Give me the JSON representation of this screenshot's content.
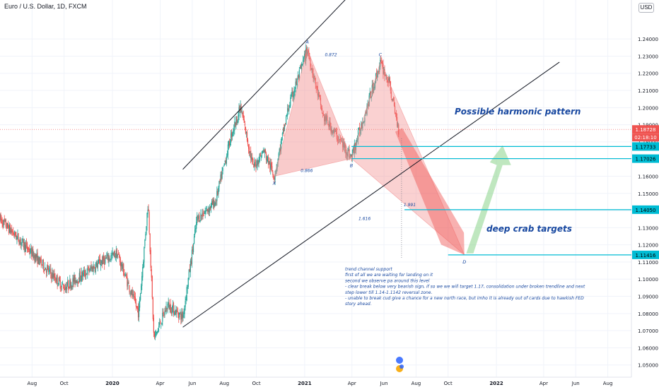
{
  "header": {
    "symbol_title": "Euro / U.S. Dollar, 1D, FXCM",
    "currency": "USD"
  },
  "colors": {
    "up_candle": "#26a69a",
    "down_candle": "#ef5350",
    "pattern_fill": "#f28b8b",
    "target_line": "#00bcd4",
    "projection_up": "#8bd48b",
    "annotation_text": "#1848a0",
    "current_price_bg": "#ef5350",
    "axis_text": "#131722"
  },
  "chart_data": {
    "type": "candlestick",
    "price_axis": {
      "ticks": [
        "1.24000",
        "1.23000",
        "1.22000",
        "1.21000",
        "1.20000",
        "1.19000",
        "1.18000",
        "1.17000",
        "1.16000",
        "1.15000",
        "1.14000",
        "1.13000",
        "1.12000",
        "1.11000",
        "1.10000",
        "1.09000",
        "1.08000",
        "1.07000",
        "1.06000",
        "1.05000"
      ],
      "range": [
        1.047,
        1.252
      ]
    },
    "time_axis": {
      "ticks": [
        "Aug",
        "Oct",
        "2020",
        "Apr",
        "Jun",
        "Aug",
        "Oct",
        "2021",
        "Apr",
        "Jun",
        "Aug",
        "Oct",
        "2022",
        "Apr",
        "Jun",
        "Aug"
      ]
    },
    "ohlc_anchors": [
      [
        "2019-06-01",
        1.135
      ],
      [
        "2019-08-01",
        1.115
      ],
      [
        "2019-10-01",
        1.095
      ],
      [
        "2019-12-10",
        1.11
      ],
      [
        "2020-01-10",
        1.115
      ],
      [
        "2020-02-20",
        1.08
      ],
      [
        "2020-03-09",
        1.145
      ],
      [
        "2020-03-20",
        1.065
      ],
      [
        "2020-04-15",
        1.085
      ],
      [
        "2020-05-14",
        1.078
      ],
      [
        "2020-06-10",
        1.135
      ],
      [
        "2020-07-15",
        1.145
      ],
      [
        "2020-08-15",
        1.185
      ],
      [
        "2020-09-01",
        1.2
      ],
      [
        "2020-09-25",
        1.165
      ],
      [
        "2020-10-15",
        1.175
      ],
      [
        "2020-11-04",
        1.16
      ],
      [
        "2020-12-01",
        1.2
      ],
      [
        "2021-01-06",
        1.234
      ],
      [
        "2021-02-05",
        1.195
      ],
      [
        "2021-03-31",
        1.171
      ],
      [
        "2021-05-25",
        1.226
      ],
      [
        "2021-06-10",
        1.215
      ],
      [
        "2021-06-29",
        1.187
      ]
    ],
    "current_price": {
      "value": 1.18728,
      "label": "1.18728",
      "countdown": "02:18:10"
    },
    "target_levels": [
      {
        "value": 1.17733,
        "label": "1.17733"
      },
      {
        "value": 1.17026,
        "label": "1.17026"
      },
      {
        "value": 1.1405,
        "label": "1.14050"
      },
      {
        "value": 1.11416,
        "label": "1.11416"
      }
    ],
    "harmonic_pattern": {
      "points": [
        {
          "name": "X",
          "date": "2020-11-04",
          "value": 1.16
        },
        {
          "name": "A",
          "date": "2021-01-06",
          "value": 1.234
        },
        {
          "name": "B",
          "date": "2021-03-31",
          "value": 1.1703
        },
        {
          "name": "C",
          "date": "2021-05-25",
          "value": 1.2266
        },
        {
          "name": "D",
          "date": "2021-11-01",
          "value": 1.1142
        }
      ],
      "ratios": [
        {
          "label": "0.872",
          "date": "2021-02-20",
          "value": 1.23
        },
        {
          "label": "0.866",
          "date": "2021-01-05",
          "value": 1.1625
        },
        {
          "label": "1.991",
          "date": "2021-07-20",
          "value": 1.1425
        },
        {
          "label": "1.616",
          "date": "2021-04-25",
          "value": 1.1345
        }
      ]
    },
    "channel": {
      "upper": [
        [
          "2020-05-14",
          1.164
        ],
        [
          "2021-07-01",
          1.296
        ]
      ],
      "lower": [
        [
          "2020-05-14",
          1.072
        ],
        [
          "2022-05-01",
          1.2265
        ]
      ]
    },
    "annotations": {
      "pattern_title": "Possible harmonic pattern",
      "targets_title": "deep crab targets",
      "analysis_lines": [
        "trend channel support",
        "first of all we are waiting for landing on it",
        "second we observe pa around this level",
        "- clear break below very bearish sign, if so we we will target 1.17, consolidation under broken trendline and next",
        "step lower till 1.14-1.1142 reversal zone.",
        "- unable to break cud give a chance for a new north race, but imho it is already out of cards due to hawkish FED",
        "story ahead."
      ]
    }
  }
}
